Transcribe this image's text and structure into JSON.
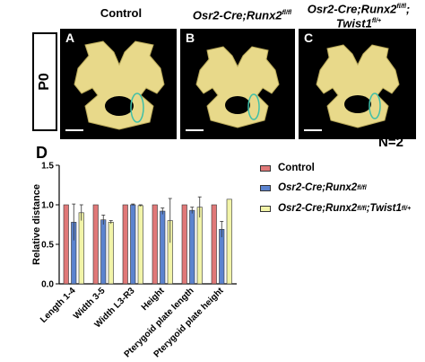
{
  "figure": {
    "columns": [
      {
        "title": "Control"
      },
      {
        "title": "Osr2-Cre;Runx2",
        "sup": "fl/fl"
      },
      {
        "title_line1": "Osr2-Cre;Runx2",
        "sup1": "fl/fl",
        "sep": ";",
        "title_line2": "Twist1",
        "sup2": "fl/+"
      }
    ],
    "age_label": "P0",
    "panels": [
      "A",
      "B",
      "C"
    ],
    "n_label": "N=2",
    "chart_label": "D"
  },
  "colors": {
    "control": "#e07878",
    "runx2": "#5b83cf",
    "twist1": "#f2f4a8"
  },
  "chart_data": {
    "type": "bar",
    "ylabel": "Relative distance",
    "ylim": [
      0,
      1.5
    ],
    "yticks": [
      "0.0",
      "0.5",
      "1.0",
      "1.5"
    ],
    "categories": [
      "Length 1-4",
      "Width 3-5",
      "Width L3-R3",
      "Height",
      "Pterygoid plate length",
      "Pterygoid plate height"
    ],
    "series": [
      {
        "name": "Control",
        "values": [
          1.0,
          1.0,
          1.0,
          1.0,
          1.0,
          1.0
        ],
        "errors": [
          0,
          0,
          0,
          0,
          0,
          0
        ]
      },
      {
        "name": "Osr2-Cre;Runx2",
        "name_sup": "fl/fl",
        "values": [
          0.78,
          0.81,
          1.0,
          0.92,
          0.93,
          0.69
        ],
        "errors": [
          0.23,
          0.06,
          0.01,
          0.04,
          0.04,
          0.1
        ]
      },
      {
        "name": "Osr2-Cre;Runx2",
        "name_sup": "fl/fl",
        "name_suffix": ";Twist1",
        "name_sup2": "fl/+",
        "values": [
          0.9,
          0.78,
          0.99,
          0.8,
          0.97,
          1.07
        ],
        "errors": [
          0.1,
          0.02,
          0.01,
          0.28,
          0.13,
          0
        ]
      }
    ],
    "legend_position": "right"
  }
}
